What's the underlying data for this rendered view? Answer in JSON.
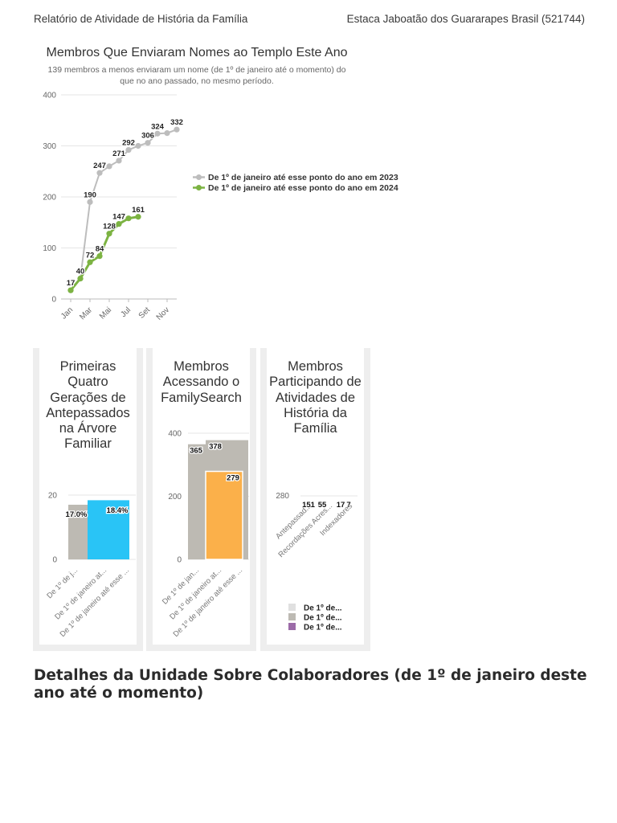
{
  "header": {
    "left": "Relatório de Atividade de História da Família",
    "right": "Estaca Jaboatão dos Guararapes Brasil (521744)"
  },
  "chart_data": [
    {
      "type": "line",
      "title": "Membros Que Enviaram Nomes ao Templo Este Ano",
      "subtitle": "139 membros a menos enviaram um nome (de 1º de janeiro até o momento) do que no ano passado, no mesmo período.",
      "x_ticks": [
        "Jan",
        "Mar",
        "Mai",
        "Jul",
        "Set",
        "Nov"
      ],
      "y_ticks": [
        0,
        100,
        200,
        300,
        400
      ],
      "ylim": [
        0,
        400
      ],
      "grid": true,
      "legend_position": "right",
      "series": [
        {
          "name": "De 1º de janeiro até esse ponto do ano em 2023",
          "color": "#bdbdbd",
          "x": [
            "Jan",
            "Fev",
            "Mar",
            "Abr",
            "Mai",
            "Jun",
            "Jul",
            "Ago",
            "Set",
            "Out",
            "Nov",
            "Dez"
          ],
          "values": [
            17,
            40,
            190,
            247,
            260,
            271,
            292,
            300,
            306,
            324,
            325,
            332
          ],
          "labels": [
            null,
            null,
            "190",
            "247",
            null,
            "271",
            "292",
            null,
            "306",
            "324",
            null,
            "332"
          ]
        },
        {
          "name": "De 1º de janeiro até esse ponto do ano em 2024",
          "color": "#7cb342",
          "x": [
            "Jan",
            "Fev",
            "Mar",
            "Abr",
            "Mai",
            "Jun",
            "Jul",
            "Ago"
          ],
          "values": [
            17,
            40,
            72,
            84,
            128,
            147,
            158,
            161
          ],
          "labels": [
            "17",
            "40",
            "72",
            "84",
            "128",
            "147",
            null,
            "161"
          ]
        }
      ]
    },
    {
      "type": "bar",
      "title": "Primeiras Quatro Gerações de Antepassados na Árvore Familiar",
      "categories": [
        "De 1º de j...",
        "De 1º de janeiro at...",
        "De 1º de janeiro até esse ..."
      ],
      "values": [
        17.0,
        null,
        18.4
      ],
      "labels": [
        "17.0%",
        "",
        "18.4%"
      ],
      "colors": [
        "#bdbab3",
        "#bdbab3",
        "#29c4f6"
      ],
      "y_ticks": [
        0,
        20
      ],
      "ylim": [
        0,
        20
      ]
    },
    {
      "type": "bar",
      "title": "Membros Acessando o FamilySearch",
      "categories": [
        "De 1º de jan...",
        "De 1º de janeiro at...",
        "De 1º de janeiro até esse ..."
      ],
      "values": [
        365,
        378,
        279
      ],
      "labels": [
        "365",
        "378",
        "279"
      ],
      "colors": [
        "#bdbab3",
        "#bdbab3",
        "#fbb04a"
      ],
      "y_ticks": [
        0,
        200,
        400
      ],
      "ylim": [
        0,
        400
      ]
    },
    {
      "type": "bar",
      "title": "Membros Participando de Atividades de História da Família",
      "categories": [
        "Antepassad...",
        "Recordações Acres...",
        "Indexadores"
      ],
      "value_labels": [
        "151",
        "55",
        "17",
        "7"
      ],
      "y_ticks": [
        280
      ],
      "legend": [
        {
          "name": "De 1º de...",
          "color": "#e0e0e0"
        },
        {
          "name": "De 1º de...",
          "color": "#bdbab3"
        },
        {
          "name": "De 1º de...",
          "color": "#9c6ba8"
        }
      ]
    }
  ],
  "section": {
    "heading": "Detalhes da Unidade Sobre Colaboradores (de 1º de janeiro deste ano até o momento)"
  }
}
